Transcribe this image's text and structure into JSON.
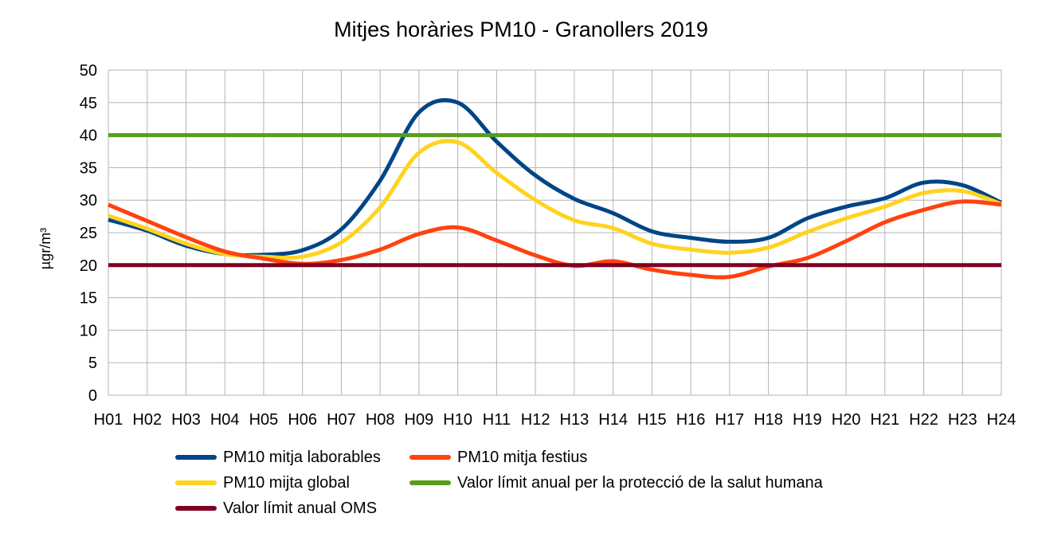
{
  "chart_data": {
    "type": "line",
    "title": "Mitjes horàries PM10 - Granollers 2019",
    "xlabel": "",
    "ylabel": "µgr/m³",
    "ylim": [
      0,
      50
    ],
    "yticks": [
      "0",
      "5",
      "10",
      "15",
      "20",
      "25",
      "30",
      "35",
      "40",
      "45",
      "50"
    ],
    "grid": true,
    "legend_position": "bottom",
    "categories": [
      "H01",
      "H02",
      "H03",
      "H04",
      "H05",
      "H06",
      "H07",
      "H08",
      "H09",
      "H10",
      "H11",
      "H12",
      "H13",
      "H14",
      "H15",
      "H16",
      "H17",
      "H18",
      "H19",
      "H20",
      "H21",
      "H22",
      "H23",
      "H24"
    ],
    "series": [
      {
        "name": "PM10 mitja laborables",
        "color": "#004586",
        "values": [
          27.0,
          25.3,
          23.0,
          21.7,
          21.6,
          22.3,
          25.5,
          33.0,
          43.5,
          45.0,
          39.0,
          33.8,
          30.2,
          28.0,
          25.2,
          24.2,
          23.6,
          24.2,
          27.2,
          29.0,
          30.3,
          32.7,
          32.3,
          29.6
        ]
      },
      {
        "name": "PM10 mitja festius",
        "color": "#ff420e",
        "values": [
          29.3,
          26.8,
          24.3,
          22.1,
          21.0,
          20.2,
          20.8,
          22.4,
          24.8,
          25.8,
          23.8,
          21.5,
          19.9,
          20.6,
          19.3,
          18.5,
          18.2,
          19.8,
          21.1,
          23.7,
          26.6,
          28.5,
          29.8,
          29.3
        ]
      },
      {
        "name": "PM10 mijta global",
        "color": "#ffd320",
        "values": [
          27.6,
          25.6,
          23.3,
          21.7,
          21.3,
          21.3,
          23.5,
          28.9,
          37.3,
          38.9,
          34.2,
          30.0,
          26.9,
          25.7,
          23.3,
          22.4,
          21.9,
          22.7,
          25.1,
          27.2,
          29.0,
          31.1,
          31.4,
          29.4
        ]
      },
      {
        "name": "Valor límit anual per la protecció de la salut humana",
        "color": "#579d1c",
        "values": [
          40,
          40,
          40,
          40,
          40,
          40,
          40,
          40,
          40,
          40,
          40,
          40,
          40,
          40,
          40,
          40,
          40,
          40,
          40,
          40,
          40,
          40,
          40,
          40
        ]
      },
      {
        "name": "Valor límit anual OMS",
        "color": "#7e0021",
        "values": [
          20,
          20,
          20,
          20,
          20,
          20,
          20,
          20,
          20,
          20,
          20,
          20,
          20,
          20,
          20,
          20,
          20,
          20,
          20,
          20,
          20,
          20,
          20,
          20
        ]
      }
    ]
  }
}
